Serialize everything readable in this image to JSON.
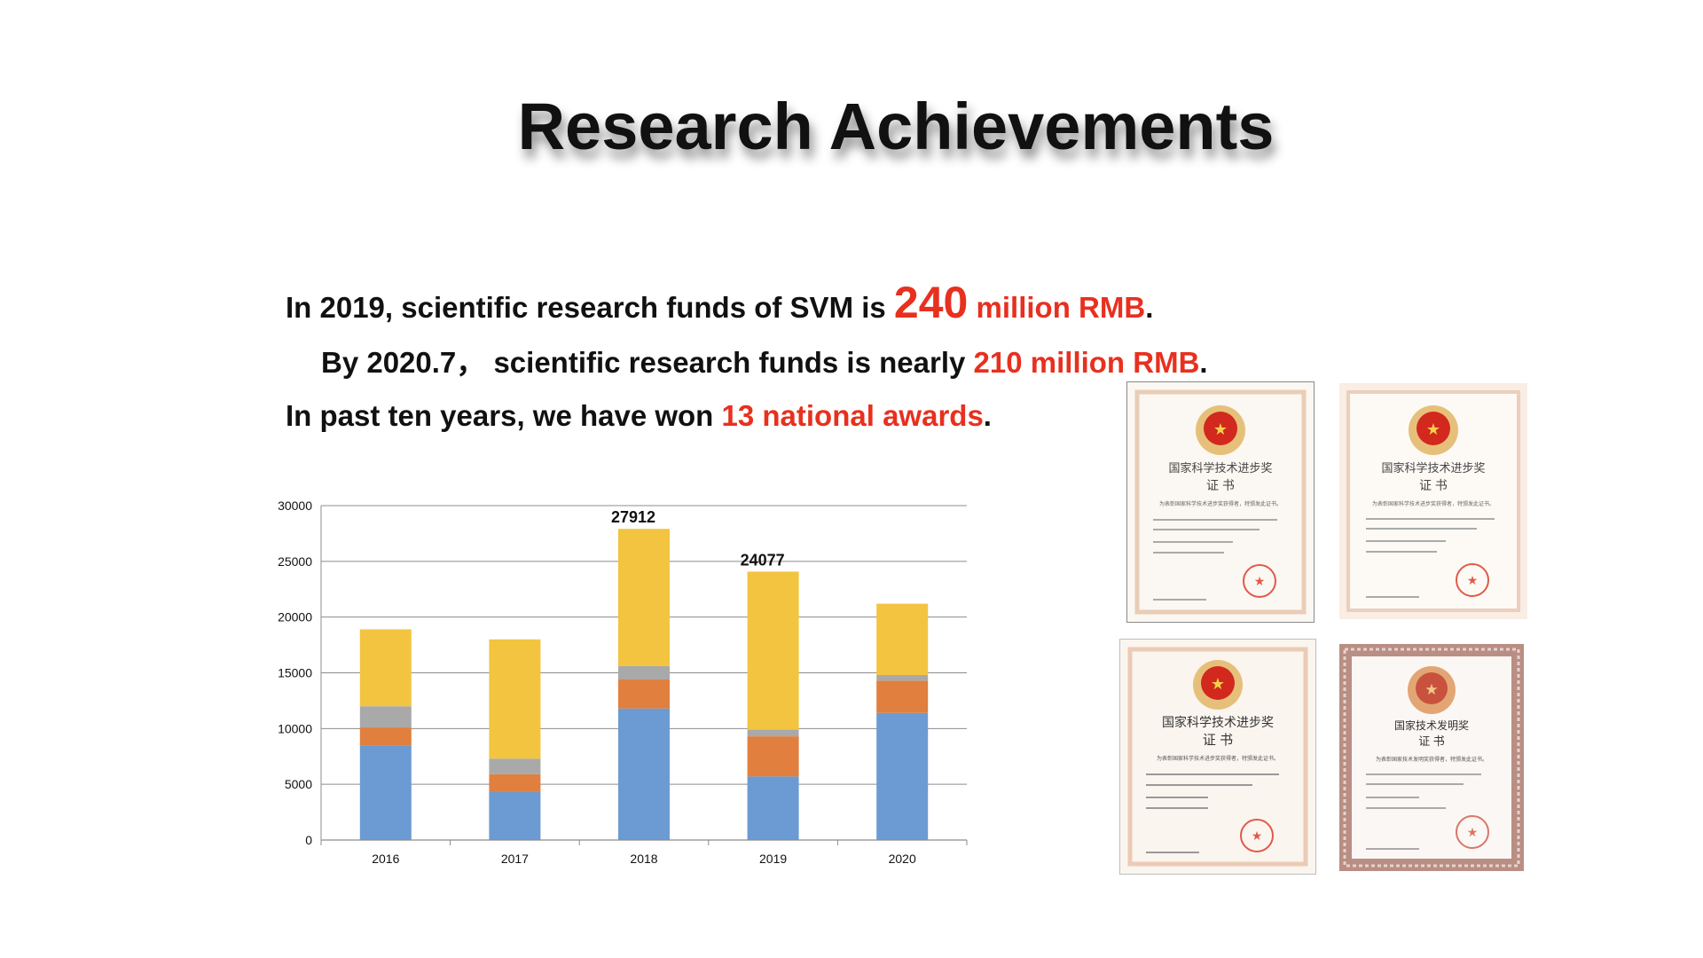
{
  "slide": {
    "title": "Research Achievements",
    "lines": [
      {
        "pre": "In 2019, scientific research funds of SVM is ",
        "highlight_big": "240",
        "highlight": " million RMB",
        "post": "."
      },
      {
        "pre": "By 2020.7， scientific research funds is nearly ",
        "highlight": "210 million RMB",
        "post": "."
      },
      {
        "pre": "In past ten years, we have won ",
        "highlight": "13 national awards",
        "post": "."
      }
    ],
    "accent_color": "#e8301f"
  },
  "chart_data": {
    "type": "bar",
    "stacked": true,
    "categories": [
      "2016",
      "2017",
      "2018",
      "2019",
      "2020"
    ],
    "series": [
      {
        "color": "#6b9bd2",
        "values": [
          8500,
          4300,
          11800,
          5700,
          11400
        ]
      },
      {
        "color": "#e07f3e",
        "values": [
          1600,
          1600,
          2600,
          3600,
          2900
        ]
      },
      {
        "color": "#a9a9a9",
        "values": [
          1900,
          1400,
          1200,
          600,
          500
        ]
      },
      {
        "color": "#f3c440",
        "values": [
          6900,
          10700,
          12312,
          14177,
          6400
        ]
      }
    ],
    "ylim": [
      0,
      30000
    ],
    "yticks": [
      "0",
      "5000",
      "10000",
      "15000",
      "20000",
      "25000",
      "30000"
    ],
    "data_labels": [
      {
        "category": "2018",
        "text": "27912"
      },
      {
        "category": "2019",
        "text": "24077"
      }
    ],
    "grid": true,
    "legend": false
  },
  "certificates": [
    {
      "title": "国家科学技术进步奖",
      "subtitle": "证 书",
      "text": "为表彰国家科学技术进步奖获得者，特颁发此证书。"
    },
    {
      "title": "国家科学技术进步奖",
      "subtitle": "证 书",
      "text": "为表彰国家科学技术进步奖获得者，特颁发此证书。"
    },
    {
      "title": "国家科学技术进步奖",
      "subtitle": "证 书",
      "text": "为表彰国家科学技术进步奖获得者，特颁发此证书。"
    },
    {
      "title": "国家技术发明奖",
      "subtitle": "证 书",
      "text": "为表彰国家技术发明奖获得者，特颁发此证书。"
    }
  ]
}
